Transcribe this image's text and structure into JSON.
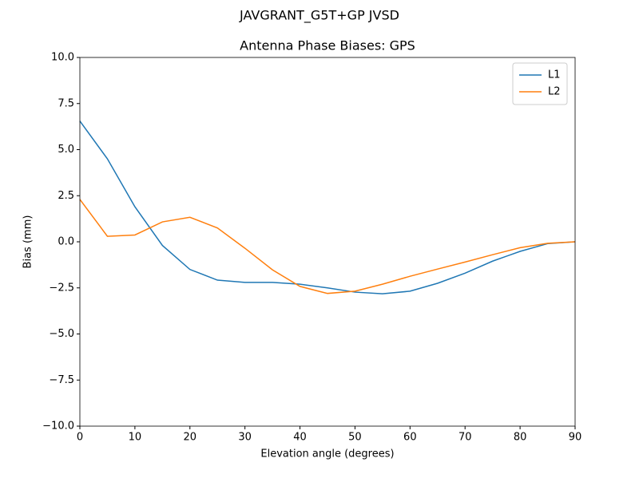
{
  "chart_data": {
    "type": "line",
    "suptitle": "JAVGRANT_G5T+GP JVSD",
    "title": "Antenna Phase Biases: GPS",
    "xlabel": "Elevation angle (degrees)",
    "ylabel": "Bias (mm)",
    "x": [
      0,
      5,
      10,
      15,
      20,
      25,
      30,
      35,
      40,
      45,
      50,
      55,
      60,
      65,
      70,
      75,
      80,
      85,
      90
    ],
    "series": [
      {
        "name": "L1",
        "color": "#1f77b4",
        "values": [
          6.55,
          4.5,
          1.9,
          -0.2,
          -1.5,
          -2.08,
          -2.2,
          -2.2,
          -2.3,
          -2.5,
          -2.73,
          -2.82,
          -2.68,
          -2.25,
          -1.7,
          -1.05,
          -0.52,
          -0.1,
          0
        ]
      },
      {
        "name": "L2",
        "color": "#ff7f0e",
        "values": [
          2.3,
          0.3,
          0.37,
          1.08,
          1.33,
          0.75,
          -0.35,
          -1.52,
          -2.42,
          -2.8,
          -2.68,
          -2.3,
          -1.87,
          -1.48,
          -1.1,
          -0.7,
          -0.32,
          -0.08,
          0
        ]
      }
    ],
    "xlim": [
      0,
      90
    ],
    "xticks": [
      0,
      10,
      20,
      30,
      40,
      50,
      60,
      70,
      80,
      90
    ],
    "ylim": [
      -10,
      10
    ],
    "yticks": [
      {
        "value": -10,
        "label": "−10.0"
      },
      {
        "value": -7.5,
        "label": "−7.5"
      },
      {
        "value": -5,
        "label": "−5.0"
      },
      {
        "value": -2.5,
        "label": "−2.5"
      },
      {
        "value": 0,
        "label": "0.0"
      },
      2.5,
      {
        "value": 5,
        "label": "5.0"
      },
      7.5,
      {
        "value": 10,
        "label": "10.0"
      }
    ],
    "grid": false,
    "legend": "upper right"
  }
}
